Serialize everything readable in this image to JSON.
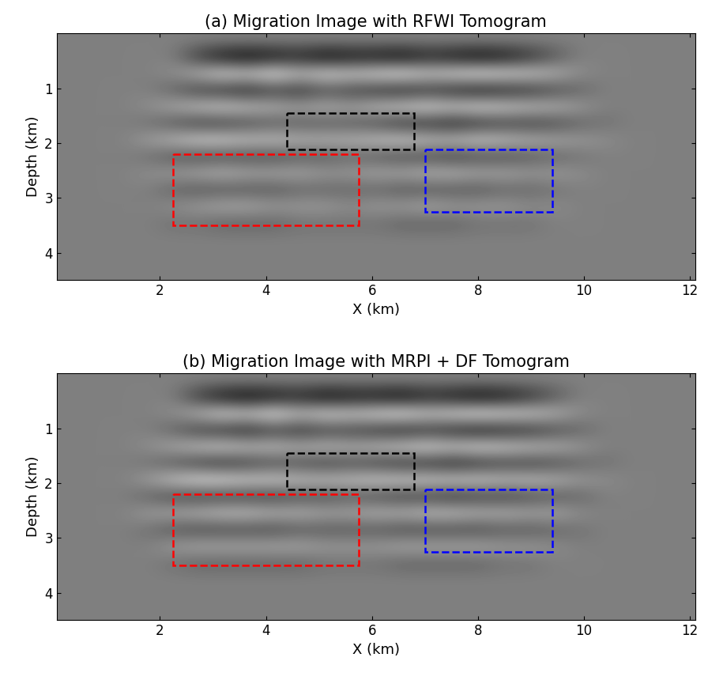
{
  "chart_data": [
    {
      "type": "image",
      "title": "(a) Migration Image with RFWI Tomogram",
      "x_label": "X (km)",
      "y_label": "Depth (km)",
      "xlim": [
        0.05,
        12.1
      ],
      "ylim": [
        4.5,
        0
      ],
      "xticks": [
        2,
        4,
        6,
        8,
        10,
        12
      ],
      "yticks": [
        1,
        2,
        3,
        4
      ],
      "cells": [
        [
          0,
          0,
          0,
          0,
          0,
          0,
          0,
          0,
          0,
          0,
          0,
          0,
          0,
          0,
          0,
          0,
          0,
          0,
          0,
          0,
          0,
          0,
          0,
          0,
          0
        ],
        [
          0,
          0,
          0,
          0,
          0,
          0.5,
          0.8,
          0.9,
          0.8,
          0.7,
          0.9,
          0.8,
          0.8,
          0.9,
          0.7,
          0.8,
          0.9,
          0.8,
          0.6,
          0.3,
          0,
          0,
          0,
          0,
          0
        ],
        [
          0,
          0,
          0,
          0,
          -0.1,
          -0.4,
          -0.7,
          -0.6,
          -0.8,
          -0.5,
          -0.7,
          -0.6,
          -0.7,
          -0.8,
          -0.6,
          -0.7,
          -0.8,
          -0.7,
          -0.6,
          -0.4,
          -0.1,
          0,
          0,
          0,
          0
        ],
        [
          0,
          0,
          0,
          0,
          0.2,
          0.5,
          0.6,
          0.7,
          0.5,
          0.6,
          0.4,
          0.5,
          0.6,
          0.7,
          0.6,
          0.7,
          0.8,
          0.7,
          0.6,
          0.4,
          0.2,
          0,
          0,
          0,
          0
        ],
        [
          0,
          0,
          0,
          -0.1,
          -0.3,
          -0.5,
          -0.6,
          -0.5,
          -0.4,
          -0.3,
          -0.4,
          -0.3,
          -0.5,
          -0.6,
          -0.7,
          -0.6,
          -0.7,
          -0.6,
          -0.5,
          -0.4,
          -0.2,
          0,
          0,
          0,
          0
        ],
        [
          0,
          0,
          0,
          0.1,
          0.3,
          0.5,
          0.5,
          0.4,
          0.3,
          0.3,
          0.3,
          0.3,
          0.4,
          0.6,
          0.6,
          0.7,
          0.6,
          0.5,
          0.5,
          0.4,
          0.2,
          0.1,
          0,
          0,
          0
        ],
        [
          0,
          0,
          0,
          -0.2,
          -0.4,
          -0.6,
          -0.6,
          -0.5,
          -0.5,
          -0.4,
          -0.4,
          -0.4,
          -0.5,
          -0.6,
          -0.5,
          -0.5,
          -0.6,
          -0.5,
          -0.4,
          -0.3,
          -0.2,
          -0.1,
          0,
          0,
          0
        ],
        [
          0,
          0,
          0,
          0.1,
          0.3,
          0.4,
          0.4,
          0.4,
          0.4,
          0.3,
          0.3,
          0.2,
          0.3,
          0.4,
          0.4,
          0.5,
          0.4,
          0.4,
          0.3,
          0.2,
          0.1,
          0,
          0,
          0,
          0
        ],
        [
          0,
          0,
          0,
          -0.1,
          -0.2,
          -0.3,
          -0.4,
          -0.3,
          -0.3,
          -0.3,
          -0.2,
          -0.2,
          -0.3,
          -0.3,
          -0.4,
          -0.4,
          -0.3,
          -0.3,
          -0.2,
          -0.2,
          -0.1,
          0,
          0,
          0,
          0
        ],
        [
          0,
          0,
          0,
          0,
          0.2,
          0.3,
          0.3,
          0.3,
          0.3,
          0.2,
          0.2,
          0.2,
          0.2,
          0.3,
          0.3,
          0.3,
          0.3,
          0.2,
          0.2,
          0.1,
          0,
          0,
          0,
          0,
          0
        ],
        [
          0,
          0,
          0,
          0,
          -0.1,
          -0.2,
          -0.3,
          -0.3,
          -0.2,
          -0.2,
          -0.2,
          -0.1,
          -0.2,
          -0.2,
          -0.3,
          -0.2,
          -0.2,
          -0.2,
          -0.1,
          -0.1,
          0,
          0,
          0,
          0,
          0
        ],
        [
          0,
          0,
          0,
          0,
          0.1,
          0.1,
          0.2,
          0.2,
          0.2,
          0.1,
          0.1,
          0.1,
          0.1,
          0.2,
          0.2,
          0.2,
          0.1,
          0.1,
          0.1,
          0,
          0,
          0,
          0,
          0,
          0
        ],
        [
          0,
          0,
          0,
          0,
          0,
          0,
          0,
          0,
          0,
          0,
          0,
          0,
          0,
          0,
          0,
          0,
          0,
          0,
          0,
          0,
          0,
          0,
          0,
          0,
          0
        ],
        [
          0,
          0,
          0,
          0,
          0,
          0,
          0,
          0,
          0,
          0,
          0,
          0,
          0,
          0,
          0,
          0,
          0,
          0,
          0,
          0,
          0,
          0,
          0,
          0,
          0
        ],
        [
          0,
          0,
          0,
          0,
          0,
          0,
          0,
          0,
          0,
          0,
          0,
          0,
          0,
          0,
          0,
          0,
          0,
          0,
          0,
          0,
          0,
          0,
          0,
          0,
          0
        ]
      ],
      "boxes": [
        {
          "x": [
            2.25,
            5.75
          ],
          "y": [
            2.2,
            3.5
          ],
          "color": "red",
          "line_style": "dashed"
        },
        {
          "x": [
            4.4,
            6.8
          ],
          "y": [
            1.45,
            2.12
          ],
          "color": "black",
          "line_style": "dashed"
        },
        {
          "x": [
            7.0,
            9.4
          ],
          "y": [
            2.12,
            3.25
          ],
          "color": "blue",
          "line_style": "dashed"
        }
      ]
    },
    {
      "type": "image",
      "title": "(b) Migration Image with MRPI + DF Tomogram",
      "x_label": "X (km)",
      "y_label": "Depth (km)",
      "xlim": [
        0.05,
        12.1
      ],
      "ylim": [
        4.5,
        0
      ],
      "xticks": [
        2,
        4,
        6,
        8,
        10,
        12
      ],
      "yticks": [
        1,
        2,
        3,
        4
      ],
      "cells": [
        [
          0,
          0,
          0,
          0,
          0,
          0,
          0,
          0,
          0,
          0,
          0,
          0,
          0,
          0,
          0,
          0,
          0,
          0,
          0,
          0,
          0,
          0,
          0,
          0,
          0
        ],
        [
          0,
          0,
          0,
          0,
          0,
          0.5,
          0.8,
          0.9,
          0.8,
          0.7,
          0.9,
          0.8,
          0.8,
          0.9,
          0.7,
          0.8,
          0.9,
          0.8,
          0.6,
          0.3,
          0,
          0,
          0,
          0,
          0
        ],
        [
          0,
          0,
          0,
          0,
          -0.1,
          -0.4,
          -0.7,
          -0.6,
          -0.8,
          -0.5,
          -0.7,
          -0.6,
          -0.7,
          -0.8,
          -0.6,
          -0.7,
          -0.8,
          -0.7,
          -0.6,
          -0.4,
          -0.1,
          0,
          0,
          0,
          0
        ],
        [
          0,
          0,
          0,
          0,
          0.2,
          0.5,
          0.6,
          0.7,
          0.5,
          0.6,
          0.5,
          0.5,
          0.6,
          0.7,
          0.6,
          0.7,
          0.8,
          0.7,
          0.6,
          0.4,
          0.2,
          0,
          0,
          0,
          0
        ],
        [
          0,
          0,
          0,
          -0.1,
          -0.3,
          -0.5,
          -0.6,
          -0.5,
          -0.5,
          -0.4,
          -0.5,
          -0.4,
          -0.5,
          -0.6,
          -0.7,
          -0.6,
          -0.7,
          -0.6,
          -0.5,
          -0.4,
          -0.2,
          0,
          0,
          0,
          0
        ],
        [
          0,
          0,
          0,
          0.1,
          0.3,
          0.5,
          0.6,
          0.5,
          0.4,
          0.4,
          0.5,
          0.4,
          0.5,
          0.6,
          0.6,
          0.7,
          0.6,
          0.5,
          0.5,
          0.4,
          0.2,
          0.1,
          0,
          0,
          0
        ],
        [
          0,
          0,
          0,
          -0.2,
          -0.5,
          -0.7,
          -0.7,
          -0.6,
          -0.6,
          -0.5,
          -0.5,
          -0.5,
          -0.6,
          -0.6,
          -0.6,
          -0.6,
          -0.6,
          -0.5,
          -0.5,
          -0.4,
          -0.2,
          -0.1,
          0,
          0,
          0
        ],
        [
          0,
          0,
          0,
          0.2,
          0.4,
          0.5,
          0.5,
          0.5,
          0.5,
          0.4,
          0.4,
          0.3,
          0.4,
          0.5,
          0.5,
          0.6,
          0.5,
          0.5,
          0.4,
          0.3,
          0.2,
          0,
          0,
          0,
          0
        ],
        [
          0,
          0,
          0,
          -0.2,
          -0.3,
          -0.4,
          -0.5,
          -0.5,
          -0.4,
          -0.4,
          -0.3,
          -0.3,
          -0.4,
          -0.4,
          -0.5,
          -0.5,
          -0.4,
          -0.4,
          -0.3,
          -0.3,
          -0.1,
          0,
          0,
          0,
          0
        ],
        [
          0,
          0,
          0,
          0.1,
          0.3,
          0.4,
          0.4,
          0.4,
          0.4,
          0.3,
          0.3,
          0.3,
          0.3,
          0.4,
          0.4,
          0.4,
          0.4,
          0.3,
          0.3,
          0.2,
          0.1,
          0,
          0,
          0,
          0
        ],
        [
          0,
          0,
          0,
          0,
          -0.2,
          -0.3,
          -0.3,
          -0.3,
          -0.3,
          -0.3,
          -0.2,
          -0.2,
          -0.2,
          -0.3,
          -0.3,
          -0.3,
          -0.3,
          -0.2,
          -0.2,
          -0.1,
          0,
          0,
          0,
          0,
          0
        ],
        [
          0,
          0,
          0,
          0,
          0.1,
          0.2,
          0.2,
          0.2,
          0.2,
          0.2,
          0.1,
          0.1,
          0.1,
          0.2,
          0.2,
          0.2,
          0.2,
          0.1,
          0.1,
          0,
          0,
          0,
          0,
          0,
          0
        ],
        [
          0,
          0,
          0,
          0,
          0,
          0,
          0,
          0,
          0,
          0,
          0,
          0,
          0,
          0,
          0,
          0,
          0,
          0,
          0,
          0,
          0,
          0,
          0,
          0,
          0
        ],
        [
          0,
          0,
          0,
          0,
          0,
          0,
          0,
          0,
          0,
          0,
          0,
          0,
          0,
          0,
          0,
          0,
          0,
          0,
          0,
          0,
          0,
          0,
          0,
          0,
          0
        ],
        [
          0,
          0,
          0,
          0,
          0,
          0,
          0,
          0,
          0,
          0,
          0,
          0,
          0,
          0,
          0,
          0,
          0,
          0,
          0,
          0,
          0,
          0,
          0,
          0,
          0
        ]
      ],
      "boxes": [
        {
          "x": [
            2.25,
            5.75
          ],
          "y": [
            2.2,
            3.5
          ],
          "color": "red",
          "line_style": "dashed"
        },
        {
          "x": [
            4.4,
            6.8
          ],
          "y": [
            1.45,
            2.12
          ],
          "color": "black",
          "line_style": "dashed"
        },
        {
          "x": [
            7.0,
            9.4
          ],
          "y": [
            2.12,
            3.25
          ],
          "color": "blue",
          "line_style": "dashed"
        }
      ]
    }
  ]
}
